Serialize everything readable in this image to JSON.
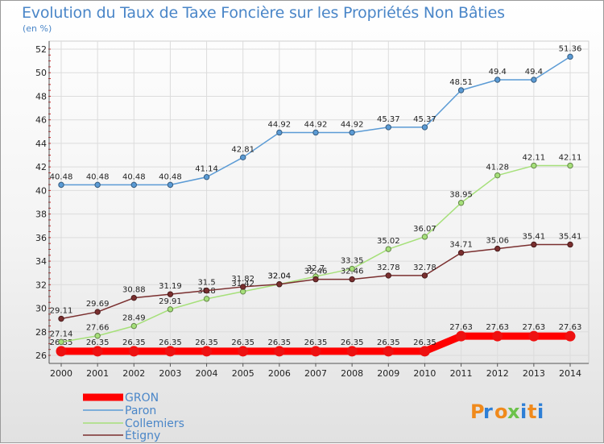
{
  "chart_data": {
    "type": "line",
    "title": "Evolution du Taux de Taxe Foncière sur les Propriétés Non Bâties",
    "ylabel": "(en %)",
    "xlabel": "",
    "ylim": [
      26,
      52
    ],
    "y_ticks": [
      26,
      28,
      30,
      32,
      34,
      36,
      38,
      40,
      42,
      44,
      46,
      48,
      50,
      52
    ],
    "x": [
      "2000",
      "2001",
      "2002",
      "2003",
      "2004",
      "2005",
      "2006",
      "2007",
      "2008",
      "2009",
      "2010",
      "2011",
      "2012",
      "2013",
      "2014"
    ],
    "grid": true,
    "legend_position": "bottom-left",
    "series": [
      {
        "name": "GRON",
        "color": "#ff0000",
        "values": [
          26.35,
          26.35,
          26.35,
          26.35,
          26.35,
          26.35,
          26.35,
          26.35,
          26.35,
          26.35,
          26.35,
          27.63,
          27.63,
          27.63,
          27.63
        ],
        "labels": [
          "26.35",
          "26.35",
          "26.35",
          "26.35",
          "26.35",
          "26.35",
          "26.35",
          "26.35",
          "26.35",
          "26.35",
          "26.35",
          "27.63",
          "27.63",
          "27.63",
          "27.63"
        ]
      },
      {
        "name": "Paron",
        "color": "#5b9bd5",
        "values": [
          40.48,
          40.48,
          40.48,
          40.48,
          41.14,
          42.81,
          44.92,
          44.92,
          44.92,
          45.37,
          45.37,
          48.51,
          49.4,
          49.4,
          51.36
        ],
        "labels": [
          "40.48",
          "40.48",
          "40.48",
          "40.48",
          "41.14",
          "42.81",
          "44.92",
          "44.92",
          "44.92",
          "45.37",
          "45.37",
          "48.51",
          "49.4",
          "49.4",
          "51.36"
        ]
      },
      {
        "name": "Collemiers",
        "color": "#a6e07a",
        "values": [
          27.14,
          27.66,
          28.49,
          29.91,
          30.8,
          31.42,
          32.04,
          32.7,
          33.35,
          35.02,
          36.07,
          38.95,
          41.28,
          42.11,
          42.11
        ],
        "labels": [
          "27.14",
          "27.66",
          "28.49",
          "29.91",
          "30.8",
          "31.42",
          "32.04",
          "32.7",
          "33.35",
          "35.02",
          "36.07",
          "38.95",
          "41.28",
          "42.11",
          "42.11"
        ]
      },
      {
        "name": "Étigny",
        "color": "#7a2f2f",
        "values": [
          29.11,
          29.69,
          30.88,
          31.19,
          31.5,
          31.82,
          32.04,
          32.46,
          32.46,
          32.78,
          32.78,
          34.71,
          35.06,
          35.41,
          35.41
        ],
        "labels": [
          "29.11",
          "29.69",
          "30.88",
          "31.19",
          "31.5",
          "31.82",
          "32.04",
          "32.46",
          "32.46",
          "32.78",
          "32.78",
          "34.71",
          "35.06",
          "35.41",
          "35.41"
        ]
      }
    ]
  },
  "logo": {
    "text": "Proxiti",
    "colors": [
      "#f08a1c",
      "#2e7fd6",
      "#f08a1c",
      "#6cc24a",
      "#2e7fd6",
      "#f08a1c",
      "#2e7fd6"
    ]
  }
}
